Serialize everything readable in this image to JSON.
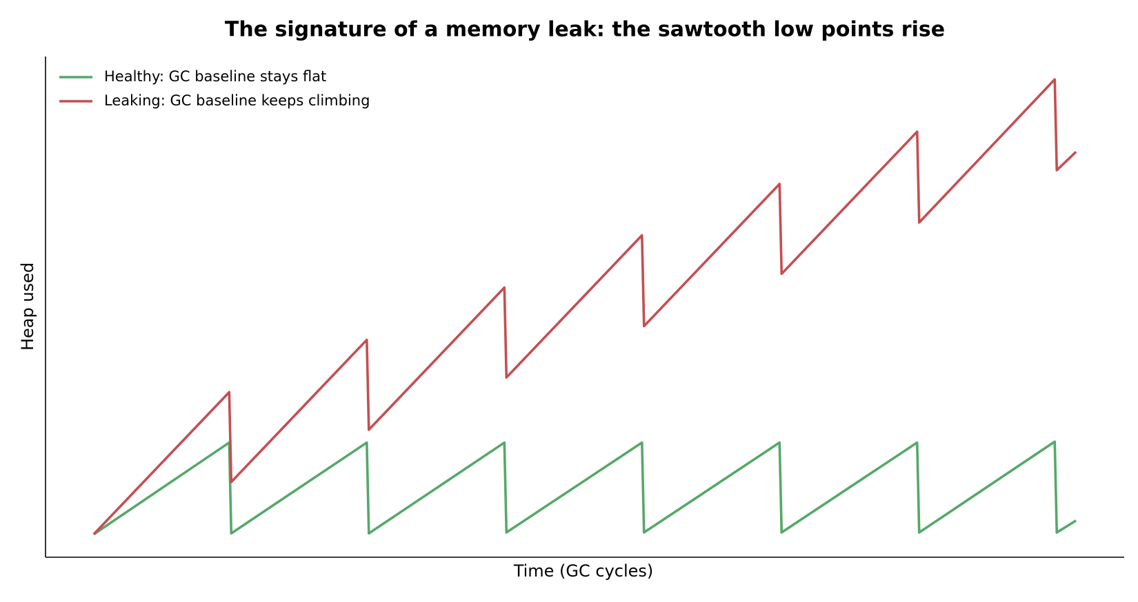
{
  "chart_data": {
    "type": "line",
    "title": "The signature of a memory leak: the sawtooth low points rise",
    "xlabel": "Time (GC cycles)",
    "ylabel": "Heap used",
    "x": [
      0,
      0.985,
      1.0,
      1.985,
      2.0,
      2.985,
      3.0,
      3.985,
      4.0,
      4.985,
      5.0,
      5.985,
      6.0,
      6.985,
      7.0,
      7.14
    ],
    "series": [
      {
        "name": "Healthy: GC baseline stays flat",
        "color": "#55a868",
        "values": [
          0,
          1.0,
          0.01,
          1.0,
          0.01,
          1.0,
          0.02,
          1.0,
          0.02,
          1.0,
          0.02,
          1.0,
          0.02,
          1.01,
          0.02,
          0.15
        ]
      },
      {
        "name": "Leaking: GC baseline keeps climbing",
        "color": "#c44e52",
        "values": [
          0,
          1.55,
          0.57,
          2.12,
          1.14,
          2.69,
          1.71,
          3.26,
          2.27,
          3.82,
          2.84,
          4.39,
          3.4,
          4.96,
          3.97,
          4.17
        ]
      }
    ],
    "xlim": [
      -0.35,
      7.49
    ],
    "ylim": [
      -0.25,
      5.21
    ],
    "legend": "upper left"
  }
}
